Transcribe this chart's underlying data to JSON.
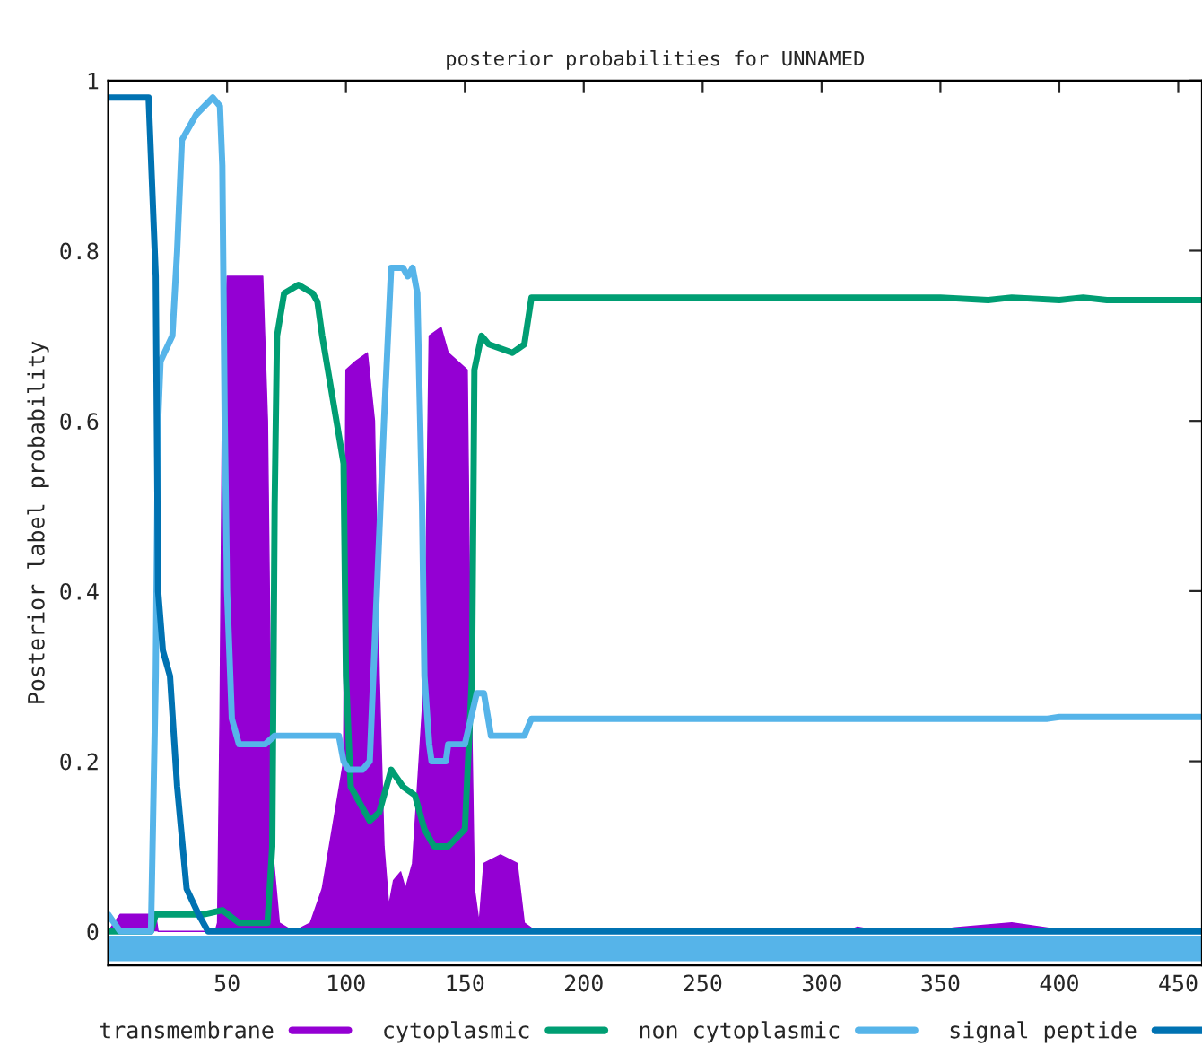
{
  "chart_data": {
    "type": "line",
    "title": "posterior probabilities for UNNAMED",
    "ylabel": "Posterior label probability",
    "xlim": [
      0,
      460
    ],
    "ylim": [
      -0.04,
      1
    ],
    "xticks": [
      50,
      100,
      150,
      200,
      250,
      300,
      350,
      400,
      450
    ],
    "yticks": [
      0,
      0.2,
      0.4,
      0.6,
      0.8,
      1
    ],
    "grid": false,
    "legend": "bottom",
    "marker": "none",
    "line_style": "solid",
    "bands": [
      {
        "axis": "y",
        "from": -0.035,
        "to": -0.005,
        "color": "#56b4e9"
      }
    ],
    "series": [
      {
        "name": "transmembrane",
        "type": "area",
        "color": "#9400d3",
        "x": [
          0,
          5,
          20,
          21,
          45,
          46,
          47,
          48,
          50,
          65,
          67,
          69,
          72,
          78,
          85,
          90,
          93,
          96,
          99,
          100,
          104,
          109,
          112,
          114,
          116,
          118,
          120,
          123,
          125,
          128,
          133,
          135,
          140,
          143,
          151,
          152,
          154,
          156,
          158,
          165,
          172,
          175,
          180,
          310,
          315,
          325,
          355,
          380,
          395,
          400,
          460
        ],
        "values": [
          0.0,
          0.02,
          0.02,
          0,
          0,
          0.01,
          0.25,
          0.6,
          0.77,
          0.77,
          0.6,
          0.1,
          0.01,
          0,
          0.01,
          0.05,
          0.1,
          0.15,
          0.2,
          0.66,
          0.67,
          0.68,
          0.6,
          0.3,
          0.1,
          0.03,
          0.06,
          0.07,
          0.05,
          0.08,
          0.3,
          0.7,
          0.71,
          0.68,
          0.66,
          0.4,
          0.05,
          0.01,
          0.08,
          0.09,
          0.08,
          0.01,
          0,
          0,
          0.005,
          0,
          0.004,
          0.01,
          0.004,
          0,
          0
        ]
      },
      {
        "name": "cytoplasmic",
        "color": "#009e73",
        "x": [
          0,
          18,
          20,
          40,
          48,
          55,
          67,
          69,
          70,
          71,
          74,
          80,
          86,
          88,
          90,
          93,
          96,
          99,
          100,
          102,
          106,
          110,
          114,
          119,
          124,
          129,
          133,
          137,
          143,
          150,
          153,
          154,
          157,
          160,
          170,
          175,
          178,
          350,
          370,
          380,
          400,
          410,
          420,
          460
        ],
        "values": [
          0,
          0,
          0.02,
          0.02,
          0.025,
          0.01,
          0.01,
          0.1,
          0.5,
          0.7,
          0.75,
          0.76,
          0.75,
          0.74,
          0.7,
          0.65,
          0.6,
          0.55,
          0.3,
          0.17,
          0.15,
          0.13,
          0.14,
          0.19,
          0.17,
          0.16,
          0.12,
          0.1,
          0.1,
          0.12,
          0.3,
          0.66,
          0.7,
          0.69,
          0.68,
          0.69,
          0.745,
          0.745,
          0.742,
          0.745,
          0.742,
          0.745,
          0.742,
          0.742
        ]
      },
      {
        "name": "non cytoplasmic",
        "color": "#56b4e9",
        "x": [
          0,
          5,
          18,
          20,
          21,
          22,
          27,
          29,
          31,
          37,
          44,
          47,
          48,
          49,
          50,
          52,
          55,
          66,
          70,
          97,
          99,
          101,
          107,
          110,
          113,
          116,
          119,
          124,
          126,
          128,
          130,
          132,
          133,
          135,
          136,
          142,
          143,
          150,
          155,
          158,
          161,
          175,
          178,
          395,
          400,
          460
        ],
        "values": [
          0.02,
          0,
          0,
          0.3,
          0.6,
          0.67,
          0.7,
          0.8,
          0.93,
          0.96,
          0.98,
          0.97,
          0.9,
          0.6,
          0.4,
          0.25,
          0.22,
          0.22,
          0.23,
          0.23,
          0.2,
          0.19,
          0.19,
          0.2,
          0.4,
          0.6,
          0.78,
          0.78,
          0.77,
          0.78,
          0.75,
          0.5,
          0.3,
          0.22,
          0.2,
          0.2,
          0.22,
          0.22,
          0.28,
          0.28,
          0.23,
          0.23,
          0.25,
          0.25,
          0.252,
          0.252
        ]
      },
      {
        "name": "signal peptide",
        "color": "#0072b2",
        "x": [
          0,
          17,
          20,
          21,
          23,
          26,
          29,
          33,
          38,
          42,
          460
        ],
        "values": [
          0.98,
          0.98,
          0.77,
          0.4,
          0.33,
          0.3,
          0.17,
          0.05,
          0.02,
          0,
          0
        ]
      }
    ]
  }
}
